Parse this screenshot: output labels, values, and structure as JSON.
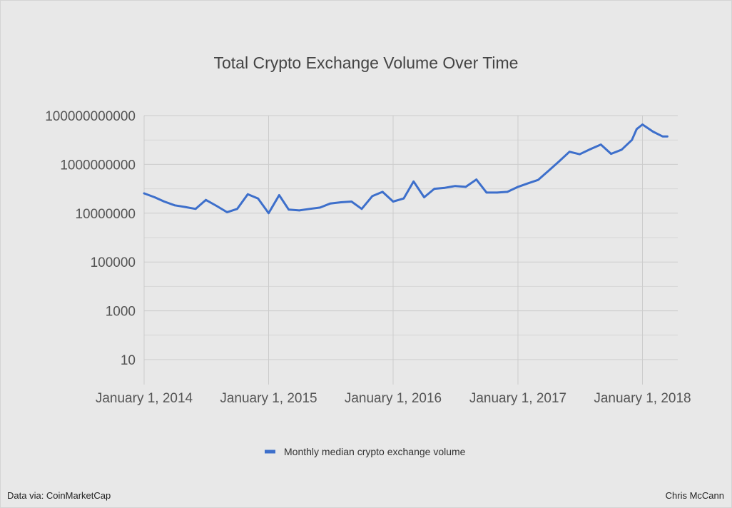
{
  "chart_data": {
    "type": "line",
    "title": "Total Crypto Exchange Volume Over Time",
    "xlabel": "",
    "ylabel": "",
    "y_scale": "log10",
    "ylim": [
      10,
      100000000000
    ],
    "y_tick_labels": [
      "10",
      "1000",
      "100000",
      "10000000",
      "1000000000",
      "100000000000"
    ],
    "xlim": [
      "2014-01-01",
      "2018-04-01"
    ],
    "x_tick_labels": [
      "January 1, 2014",
      "January 1, 2015",
      "January 1, 2016",
      "January 1, 2017",
      "January 1, 2018"
    ],
    "x_tick_dates": [
      "2014-01-01",
      "2015-01-01",
      "2016-01-01",
      "2017-01-01",
      "2018-01-01"
    ],
    "grid": true,
    "legend_position": "bottom",
    "series": [
      {
        "name": "Monthly median crypto exchange volume",
        "color": "#3d6fcb",
        "x": [
          "2014-01-01",
          "2014-02-01",
          "2014-03-01",
          "2014-04-01",
          "2014-05-01",
          "2014-06-01",
          "2014-07-01",
          "2014-08-01",
          "2014-09-01",
          "2014-10-01",
          "2014-11-01",
          "2014-12-01",
          "2015-01-01",
          "2015-02-01",
          "2015-03-01",
          "2015-04-01",
          "2015-05-01",
          "2015-06-01",
          "2015-07-01",
          "2015-08-01",
          "2015-09-01",
          "2015-10-01",
          "2015-11-01",
          "2015-12-01",
          "2016-01-01",
          "2016-02-01",
          "2016-03-01",
          "2016-04-01",
          "2016-05-01",
          "2016-06-01",
          "2016-07-01",
          "2016-08-01",
          "2016-09-01",
          "2016-10-01",
          "2016-11-01",
          "2016-12-01",
          "2017-01-01",
          "2017-02-01",
          "2017-03-01",
          "2017-04-01",
          "2017-05-01",
          "2017-06-01",
          "2017-07-01",
          "2017-08-01",
          "2017-09-01",
          "2017-10-01",
          "2017-11-01",
          "2017-12-01",
          "2017-12-15",
          "2018-01-01",
          "2018-02-01",
          "2018-03-01",
          "2018-03-15"
        ],
        "values": [
          65000000,
          45000000,
          30000000,
          21000000,
          18000000,
          15000000,
          35000000,
          20000000,
          11000000,
          15000000,
          60000000,
          40000000,
          10000000,
          55000000,
          14000000,
          13000000,
          15000000,
          17000000,
          25000000,
          28000000,
          30000000,
          15000000,
          50000000,
          75000000,
          30000000,
          40000000,
          200000000,
          45000000,
          100000000,
          110000000,
          130000000,
          120000000,
          240000000,
          70000000,
          70000000,
          75000000,
          120000000,
          170000000,
          230000000,
          550000000,
          1300000000,
          3300000000,
          2600000000,
          4200000000,
          6500000000,
          2700000000,
          4000000000,
          10000000000,
          28000000000,
          43000000000,
          22000000000,
          14000000000,
          14000000000
        ]
      }
    ]
  },
  "footer": {
    "source": "Data via: CoinMarketCap",
    "author": "Chris McCann"
  }
}
